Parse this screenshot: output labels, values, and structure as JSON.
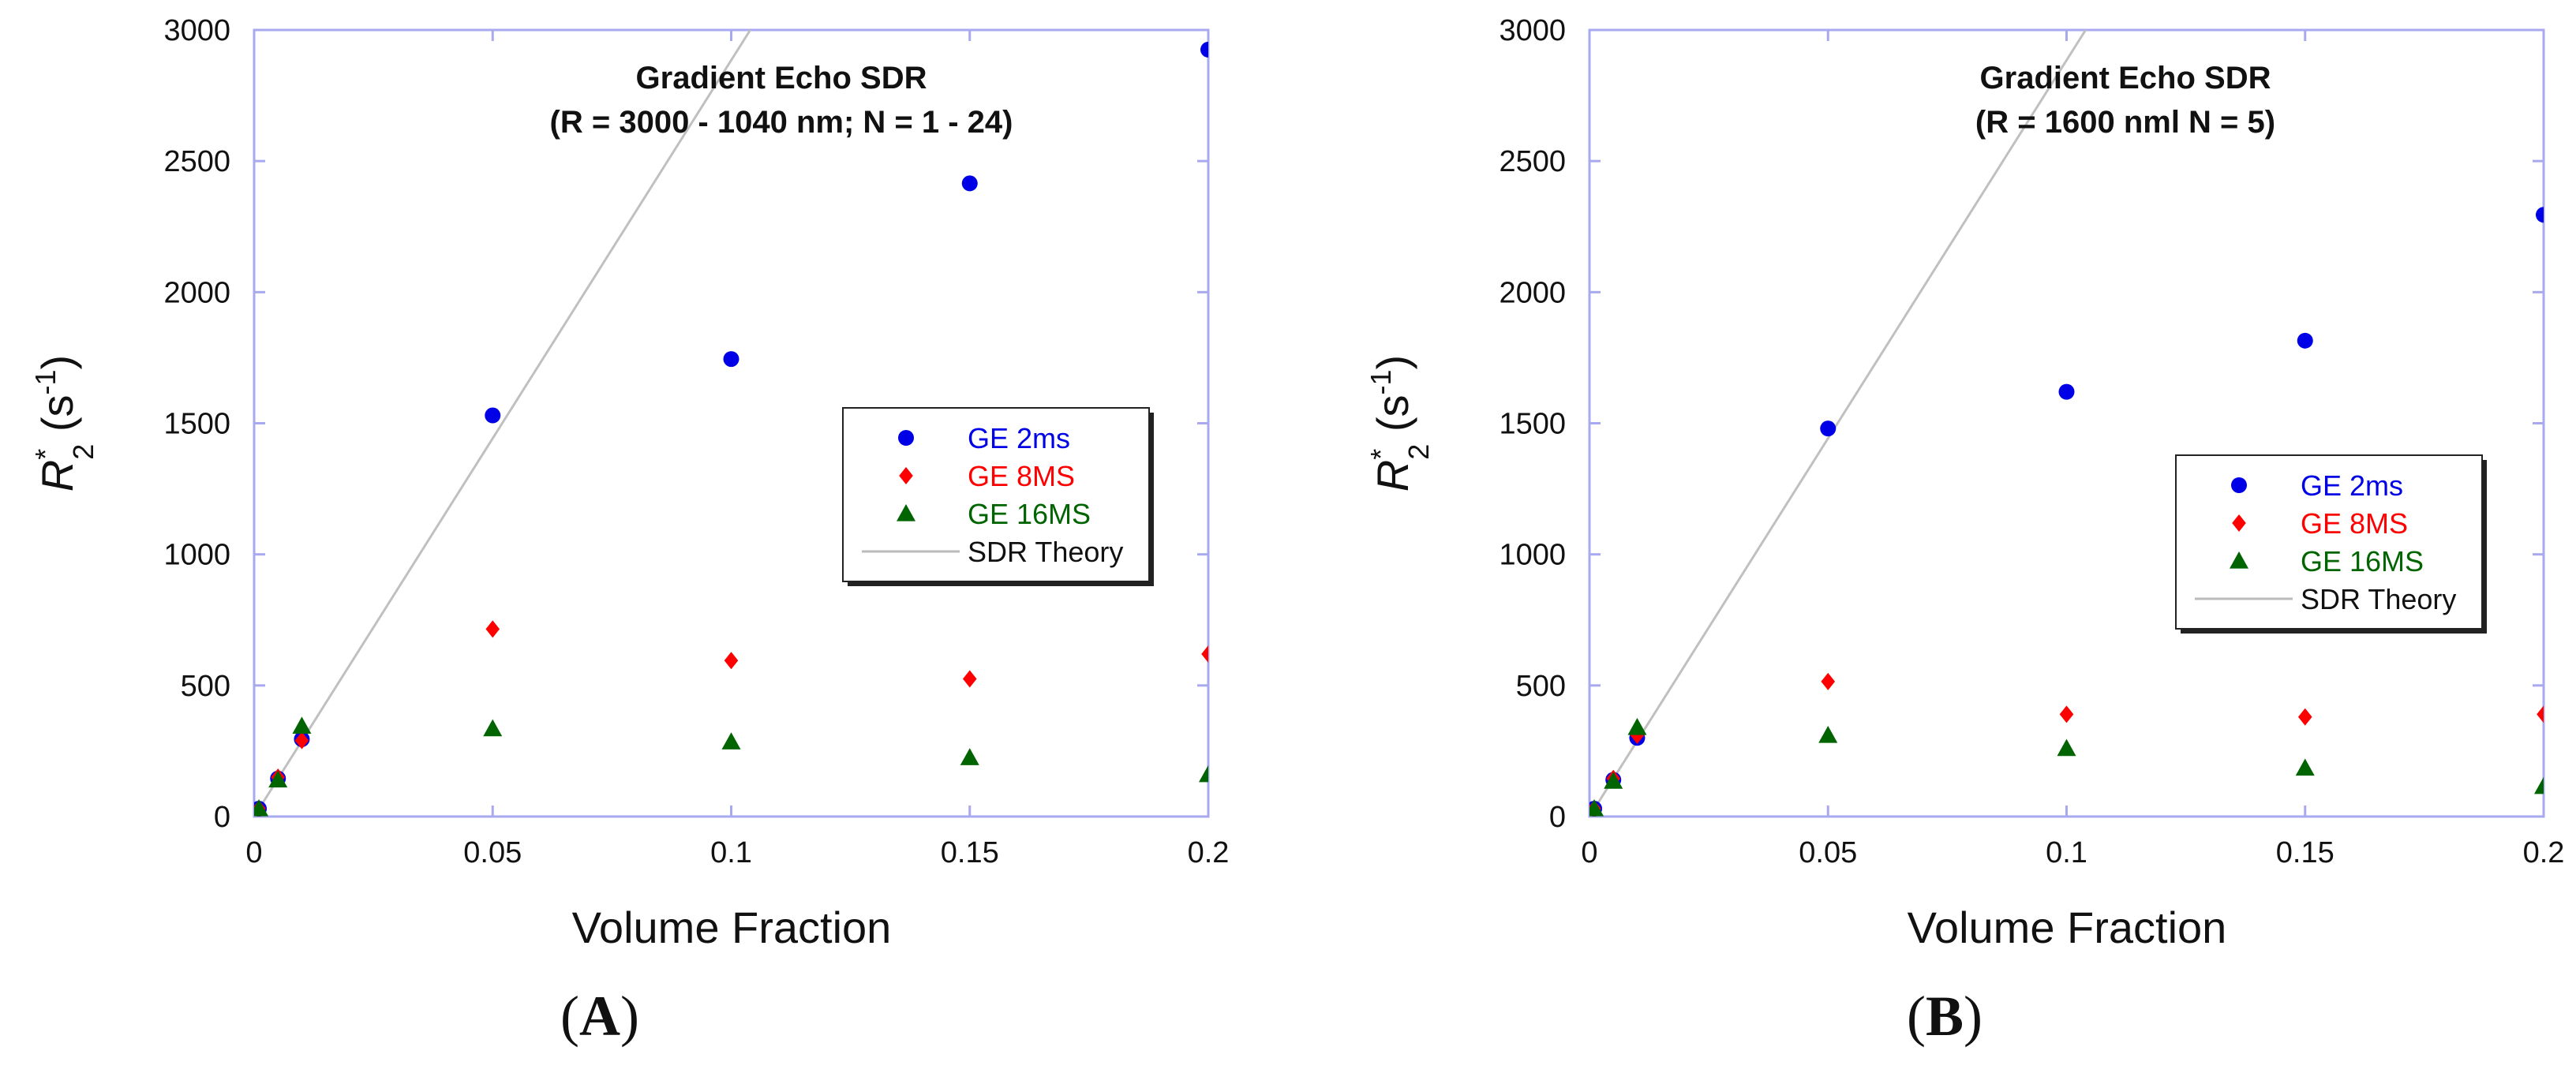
{
  "colors": {
    "series": [
      "#0000e6",
      "#ff0000",
      "#006400",
      "#bbbbbb"
    ],
    "axis": "#a9a9f0"
  },
  "chart_data": [
    {
      "type": "scatter",
      "panel_label": "A",
      "title_line1": "Gradient Echo SDR",
      "title_line2": "(R = 3000 - 1040 nm; N = 1 - 24)",
      "xlabel": "Volume Fraction",
      "ylabel": {
        "base": "R",
        "superscript": "*",
        "subscript": "2",
        "unit_open": " (s",
        "unit_exp": "-1",
        "unit_close": ")"
      },
      "xlim": [
        0,
        0.2
      ],
      "ylim": [
        0,
        3000
      ],
      "x_ticks": [
        0,
        0.05,
        0.1,
        0.15,
        0.2
      ],
      "x_tick_labels": [
        "0",
        "0.05",
        "0.1",
        "0.15",
        "0.2"
      ],
      "y_ticks": [
        0,
        500,
        1000,
        1500,
        2000,
        2500,
        3000
      ],
      "y_tick_labels": [
        "0",
        "500",
        "1000",
        "1500",
        "2000",
        "2500",
        "3000"
      ],
      "series": [
        {
          "name": "GE 2ms",
          "marker": "circle",
          "x": [
            0.001,
            0.005,
            0.01,
            0.05,
            0.1,
            0.15,
            0.2
          ],
          "y": [
            30,
            145,
            295,
            1530,
            1745,
            2415,
            2925
          ]
        },
        {
          "name": "GE 8MS",
          "marker": "diamond",
          "x": [
            0.001,
            0.005,
            0.01,
            0.05,
            0.1,
            0.15,
            0.2
          ],
          "y": [
            30,
            150,
            290,
            715,
            595,
            525,
            620
          ]
        },
        {
          "name": "GE 16MS",
          "marker": "triangle",
          "x": [
            0.001,
            0.005,
            0.01,
            0.05,
            0.1,
            0.15,
            0.2
          ],
          "y": [
            30,
            140,
            345,
            335,
            285,
            225,
            160
          ]
        },
        {
          "name": "SDR Theory",
          "marker": "line",
          "x": [
            0,
            0.104
          ],
          "y": [
            0,
            3000
          ]
        }
      ],
      "legend_position": "center-right"
    },
    {
      "type": "scatter",
      "panel_label": "B",
      "title_line1": "Gradient Echo SDR",
      "title_line2": "(R = 1600 nml N = 5)",
      "xlabel": "Volume Fraction",
      "ylabel": {
        "base": "R",
        "superscript": "*",
        "subscript": "2",
        "unit_open": " (s",
        "unit_exp": "-1",
        "unit_close": ")"
      },
      "xlim": [
        0,
        0.2
      ],
      "ylim": [
        0,
        3000
      ],
      "x_ticks": [
        0,
        0.05,
        0.1,
        0.15,
        0.2
      ],
      "x_tick_labels": [
        "0",
        "0.05",
        "0.1",
        "0.15",
        "0.2"
      ],
      "y_ticks": [
        0,
        500,
        1000,
        1500,
        2000,
        2500,
        3000
      ],
      "y_tick_labels": [
        "0",
        "500",
        "1000",
        "1500",
        "2000",
        "2500",
        "3000"
      ],
      "series": [
        {
          "name": "GE 2ms",
          "marker": "circle",
          "x": [
            0.001,
            0.005,
            0.01,
            0.05,
            0.1,
            0.15,
            0.2
          ],
          "y": [
            30,
            140,
            300,
            1480,
            1620,
            1815,
            2295
          ]
        },
        {
          "name": "GE 8MS",
          "marker": "diamond",
          "x": [
            0.001,
            0.005,
            0.01,
            0.05,
            0.1,
            0.15,
            0.2
          ],
          "y": [
            30,
            145,
            310,
            515,
            390,
            380,
            390
          ]
        },
        {
          "name": "GE 16MS",
          "marker": "triangle",
          "x": [
            0.001,
            0.005,
            0.01,
            0.05,
            0.1,
            0.15,
            0.2
          ],
          "y": [
            30,
            135,
            340,
            310,
            260,
            185,
            115
          ]
        },
        {
          "name": "SDR Theory",
          "marker": "line",
          "x": [
            0,
            0.104
          ],
          "y": [
            0,
            3000
          ]
        }
      ],
      "legend_position": "center-right"
    }
  ]
}
